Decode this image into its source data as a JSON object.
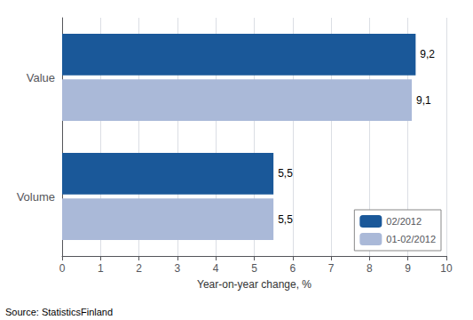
{
  "chart_data": {
    "type": "bar",
    "orientation": "horizontal",
    "categories": [
      "Volume",
      "Value"
    ],
    "series": [
      {
        "name": "02/2012",
        "color": "#1a5899",
        "values": [
          5.5,
          9.2
        ],
        "value_labels": [
          "5,5",
          "9,2"
        ]
      },
      {
        "name": "01-02/2012",
        "color": "#aab9d8",
        "values": [
          5.5,
          9.1
        ],
        "value_labels": [
          "5,5",
          "9,1"
        ]
      }
    ],
    "xlabel": "Year-on-year change, %",
    "xlim": [
      0,
      10
    ],
    "xticks": [
      0,
      1,
      2,
      3,
      4,
      5,
      6,
      7,
      8,
      9,
      10
    ],
    "grid": true,
    "legend": "lower right",
    "data_labels": true,
    "annotations": [
      "Source: StatisticsFinland"
    ]
  }
}
